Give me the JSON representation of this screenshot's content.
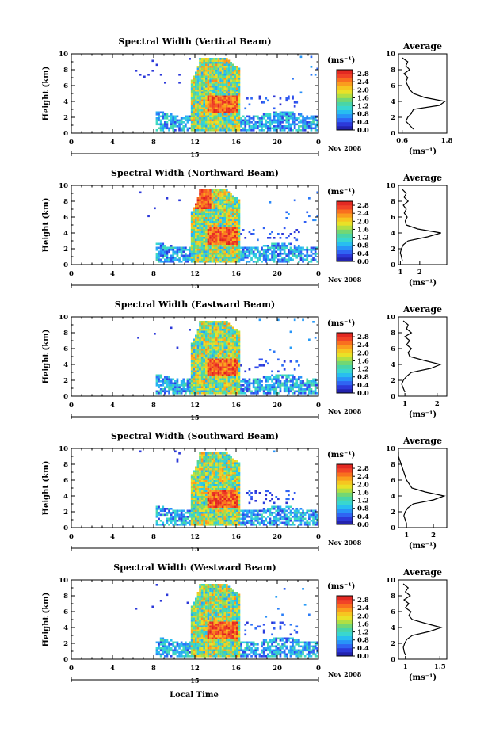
{
  "figure": {
    "xlabel_bottom": "Local Time",
    "date_label": "Nov 2008",
    "date_day": "15",
    "colorbar_unit": "(ms⁻¹)",
    "colorbar_ticks": [
      "2.8",
      "2.4",
      "2.0",
      "1.6",
      "1.2",
      "0.8",
      "0.4",
      "0.0"
    ],
    "ylabel": "Height (km)",
    "x_ticks": [
      "0",
      "4",
      "8",
      "12",
      "16",
      "20",
      "0"
    ],
    "y_ticks": [
      "0",
      "2",
      "4",
      "6",
      "8",
      "10"
    ],
    "avg_title": "Average",
    "avg_unit": "(ms⁻¹)"
  },
  "chart_data": [
    {
      "type": "heatmap",
      "title": "Spectral Width (Vertical Beam)",
      "xlabel": "",
      "ylabel": "Height (km)",
      "xlim": [
        0,
        24
      ],
      "ylim": [
        0,
        10
      ],
      "colorbar": {
        "range": [
          0,
          3.0
        ],
        "ticks": [
          0.0,
          0.4,
          0.8,
          1.2,
          1.6,
          2.0,
          2.4,
          2.8
        ],
        "unit": "ms-1"
      },
      "coverage": {
        "lower_layer": {
          "x": [
            8,
            24
          ],
          "y": [
            0.3,
            3.0
          ]
        },
        "storm": {
          "x": [
            11.5,
            16.2
          ],
          "y": [
            0.3,
            9.6
          ]
        }
      },
      "average_profile": {
        "xlim": [
          0.5,
          1.8
        ],
        "xticks": [
          0.6,
          1.8
        ],
        "height": [
          0.5,
          1,
          1.5,
          2,
          2.5,
          3,
          3.5,
          4,
          4.5,
          5,
          5.5,
          6,
          6.5,
          7,
          7.5,
          8,
          8.5,
          9,
          9.5
        ],
        "width": [
          0.9,
          0.8,
          0.7,
          0.75,
          0.85,
          0.9,
          1.6,
          1.75,
          1.2,
          0.9,
          0.8,
          0.75,
          0.7,
          0.75,
          0.65,
          0.8,
          0.7,
          0.75,
          0.6
        ]
      }
    },
    {
      "type": "heatmap",
      "title": "Spectral Width (Northward Beam)",
      "xlabel": "",
      "ylabel": "Height (km)",
      "xlim": [
        0,
        24
      ],
      "ylim": [
        0,
        10
      ],
      "colorbar": {
        "range": [
          0,
          3.0
        ],
        "ticks": [
          0.0,
          0.4,
          0.8,
          1.2,
          1.6,
          2.0,
          2.4,
          2.8
        ],
        "unit": "ms-1"
      },
      "coverage": {
        "lower_layer": {
          "x": [
            8,
            24
          ],
          "y": [
            0.3,
            3.0
          ]
        },
        "storm": {
          "x": [
            11.5,
            16.2
          ],
          "y": [
            0.3,
            9.6
          ]
        }
      },
      "average_profile": {
        "xlim": [
          0.9,
          3.4
        ],
        "xticks": [
          1,
          2
        ],
        "height": [
          0.5,
          1,
          1.5,
          2,
          2.5,
          3,
          3.5,
          4,
          4.5,
          5,
          5.5,
          6,
          6.5,
          7,
          7.5,
          8,
          8.5,
          9,
          9.5
        ],
        "width": [
          1.1,
          1.05,
          1.0,
          1.05,
          1.15,
          1.4,
          2.4,
          3.1,
          1.9,
          1.3,
          1.25,
          1.35,
          1.2,
          1.3,
          1.15,
          1.4,
          1.2,
          1.3,
          1.1
        ]
      }
    },
    {
      "type": "heatmap",
      "title": "Spectral Width (Eastward Beam)",
      "xlabel": "",
      "ylabel": "Height (km)",
      "xlim": [
        0,
        24
      ],
      "ylim": [
        0,
        10
      ],
      "colorbar": {
        "range": [
          0,
          3.0
        ],
        "ticks": [
          0.0,
          0.4,
          0.8,
          1.2,
          1.6,
          2.0,
          2.4,
          2.8
        ],
        "unit": "ms-1"
      },
      "coverage": {
        "lower_layer": {
          "x": [
            8,
            24
          ],
          "y": [
            0.3,
            3.0
          ]
        },
        "storm": {
          "x": [
            11.5,
            16.2
          ],
          "y": [
            0.3,
            9.6
          ]
        }
      },
      "average_profile": {
        "xlim": [
          0.8,
          2.3
        ],
        "xticks": [
          1,
          2
        ],
        "height": [
          0.5,
          1,
          1.5,
          2,
          2.5,
          3,
          3.5,
          4,
          4.5,
          5,
          5.5,
          6,
          6.5,
          7,
          7.5,
          8,
          8.5,
          9,
          9.5
        ],
        "width": [
          1.0,
          0.95,
          0.9,
          0.95,
          1.05,
          1.2,
          1.8,
          2.1,
          1.6,
          1.15,
          1.1,
          1.2,
          1.05,
          1.15,
          1.0,
          1.2,
          1.05,
          1.1,
          0.95
        ]
      }
    },
    {
      "type": "heatmap",
      "title": "Spectral Width (Southward Beam)",
      "xlabel": "",
      "ylabel": "Height (km)",
      "xlim": [
        0,
        24
      ],
      "ylim": [
        0,
        10
      ],
      "colorbar": {
        "range": [
          0,
          3.0
        ],
        "ticks": [
          0.0,
          0.4,
          0.8,
          1.2,
          1.6,
          2.0,
          2.4,
          2.8
        ],
        "unit": "ms-1"
      },
      "coverage": {
        "lower_layer": {
          "x": [
            8,
            24
          ],
          "y": [
            0.3,
            3.0
          ]
        },
        "storm": {
          "x": [
            11.5,
            16.2
          ],
          "y": [
            0.3,
            9.6
          ]
        }
      },
      "average_profile": {
        "xlim": [
          0.7,
          2.5
        ],
        "xticks": [
          1,
          2
        ],
        "height": [
          0.5,
          1,
          1.5,
          2,
          2.5,
          3,
          3.5,
          4,
          4.5,
          5,
          5.5,
          6,
          6.5,
          7,
          7.5,
          8,
          8.5,
          9,
          9.5
        ],
        "width": [
          1.0,
          0.95,
          0.9,
          0.95,
          1.05,
          1.25,
          2.0,
          2.4,
          1.7,
          1.2,
          1.1,
          1.0,
          0.95,
          0.9,
          0.85,
          0.8,
          0.75,
          0.7,
          0.7
        ]
      }
    },
    {
      "type": "heatmap",
      "title": "Spectral Width (Westward Beam)",
      "xlabel": "Local Time",
      "ylabel": "Height (km)",
      "xlim": [
        0,
        24
      ],
      "ylim": [
        0,
        10
      ],
      "colorbar": {
        "range": [
          0,
          3.0
        ],
        "ticks": [
          0.0,
          0.4,
          0.8,
          1.2,
          1.6,
          2.0,
          2.4,
          2.8
        ],
        "unit": "ms-1"
      },
      "coverage": {
        "lower_layer": {
          "x": [
            8,
            24
          ],
          "y": [
            0.3,
            3.0
          ]
        },
        "storm": {
          "x": [
            11.5,
            16.2
          ],
          "y": [
            0.3,
            9.6
          ]
        }
      },
      "average_profile": {
        "xlim": [
          0.9,
          1.6
        ],
        "xticks": [
          1.0,
          1.5
        ],
        "height": [
          0.5,
          1,
          1.5,
          2,
          2.5,
          3,
          3.5,
          4,
          4.5,
          5,
          5.5,
          6,
          6.5,
          7,
          7.5,
          8,
          8.5,
          9,
          9.5
        ],
        "width": [
          1.0,
          0.98,
          0.97,
          0.99,
          1.02,
          1.1,
          1.35,
          1.52,
          1.3,
          1.1,
          1.05,
          1.08,
          1.0,
          1.05,
          0.98,
          1.07,
          1.0,
          1.04,
          0.97
        ]
      }
    }
  ]
}
